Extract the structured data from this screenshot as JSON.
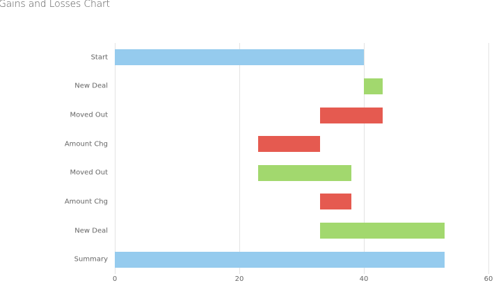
{
  "title": "Gains and Losses Chart",
  "colors": {
    "total": "#95cbee",
    "gain": "#a2d86e",
    "loss": "#e55a50",
    "grid": "#e3e3e3",
    "text": "#666666"
  },
  "chart_data": {
    "type": "bar",
    "orientation": "horizontal",
    "subtype": "waterfall / floating bar",
    "title": "Gains and Losses Chart",
    "xlabel": "",
    "ylabel": "",
    "xlim": [
      0,
      60
    ],
    "x_ticks": [
      0,
      20,
      40,
      60
    ],
    "grid": true,
    "legend": null,
    "categories": [
      "Start",
      "New Deal",
      "Moved Out",
      "Amount Chg",
      "Moved Out",
      "Amount Chg",
      "New Deal",
      "Summary"
    ],
    "bars": [
      {
        "label": "Start",
        "from": 0,
        "to": 40,
        "kind": "total"
      },
      {
        "label": "New Deal",
        "from": 40,
        "to": 43,
        "kind": "gain"
      },
      {
        "label": "Moved Out",
        "from": 33,
        "to": 43,
        "kind": "loss"
      },
      {
        "label": "Amount Chg",
        "from": 23,
        "to": 33,
        "kind": "loss"
      },
      {
        "label": "Moved Out",
        "from": 23,
        "to": 38,
        "kind": "gain"
      },
      {
        "label": "Amount Chg",
        "from": 33,
        "to": 38,
        "kind": "loss"
      },
      {
        "label": "New Deal",
        "from": 33,
        "to": 53,
        "kind": "gain"
      },
      {
        "label": "Summary",
        "from": 0,
        "to": 53,
        "kind": "total"
      }
    ]
  }
}
